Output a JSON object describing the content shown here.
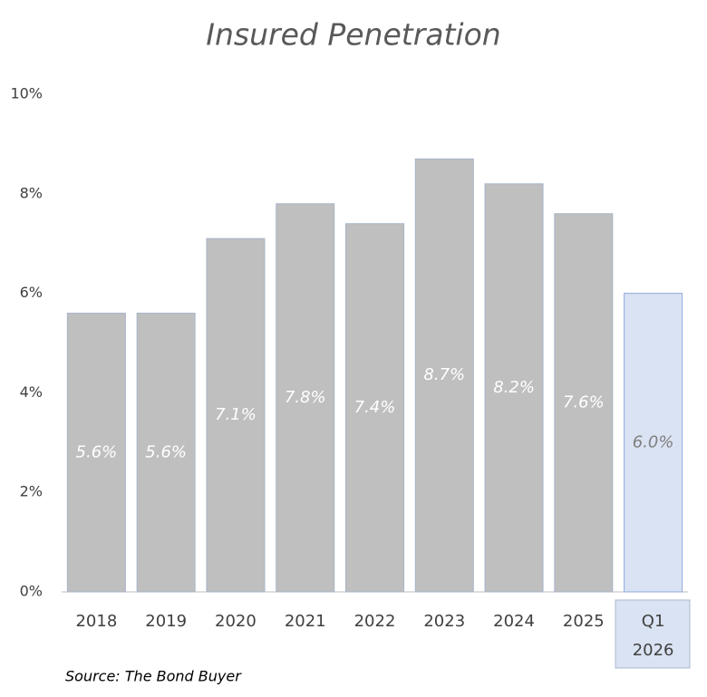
{
  "chart_data": {
    "type": "bar",
    "title": "Insured Penetration",
    "categories": [
      "2018",
      "2019",
      "2020",
      "2021",
      "2022",
      "2023",
      "2024",
      "2025",
      "Q1 2026"
    ],
    "values": [
      5.6,
      5.6,
      7.1,
      7.8,
      7.4,
      8.7,
      8.2,
      7.6,
      6.0
    ],
    "value_labels": [
      "5.6%",
      "5.6%",
      "7.1%",
      "7.8%",
      "7.4%",
      "8.7%",
      "8.2%",
      "7.6%",
      "6.0%"
    ],
    "colors": [
      "#bfbfbf",
      "#bfbfbf",
      "#bfbfbf",
      "#bfbfbf",
      "#bfbfbf",
      "#bfbfbf",
      "#bfbfbf",
      "#bfbfbf",
      "#dae3f3"
    ],
    "ylim": [
      0,
      10
    ],
    "yticks": [
      {
        "value": 0,
        "label": "0%"
      },
      {
        "value": 2,
        "label": "2%"
      },
      {
        "value": 4,
        "label": "4%"
      },
      {
        "value": 6,
        "label": "6%"
      },
      {
        "value": 8,
        "label": "8%"
      },
      {
        "value": 10,
        "label": "10%"
      }
    ],
    "grid": false,
    "source": "Source: The Bond Buyer"
  }
}
